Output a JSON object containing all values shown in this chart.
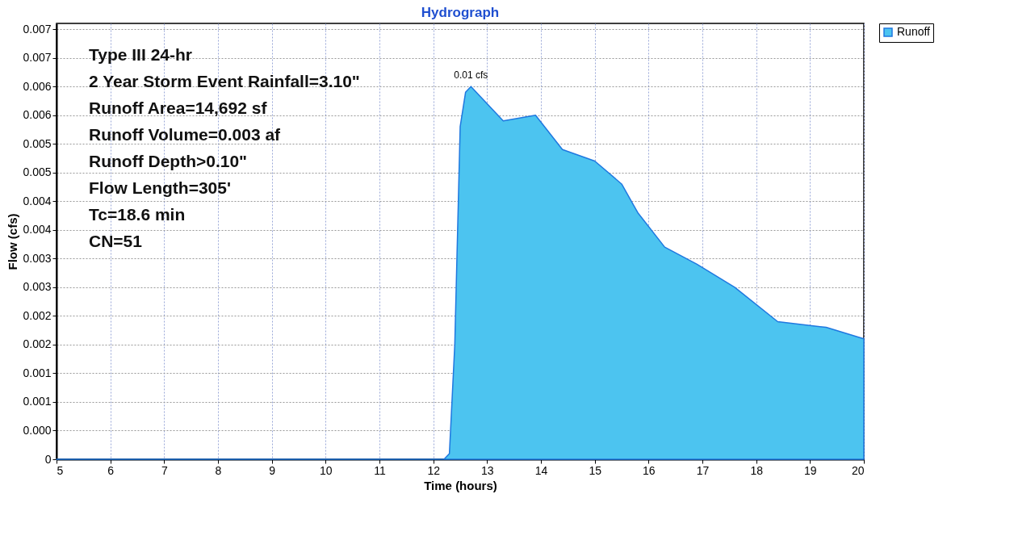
{
  "chart_data": {
    "type": "area",
    "title": "Hydrograph",
    "xlabel": "Time  (hours)",
    "ylabel": "Flow  (cfs)",
    "x": [
      5,
      12.2,
      12.3,
      12.4,
      12.5,
      12.6,
      12.7,
      13.0,
      13.3,
      13.9,
      14.4,
      15.0,
      15.5,
      15.8,
      16.3,
      16.9,
      17.6,
      18.4,
      19.3,
      20.0
    ],
    "series": [
      {
        "name": "Runoff",
        "color": "#4cc4f0",
        "values": [
          0,
          0,
          0.0001,
          0.002,
          0.0058,
          0.0064,
          0.0065,
          0.0062,
          0.0059,
          0.006,
          0.0054,
          0.0052,
          0.0048,
          0.0043,
          0.0037,
          0.0034,
          0.003,
          0.0024,
          0.0023,
          0.0021
        ]
      }
    ],
    "xlim": [
      5,
      20
    ],
    "xticks": [
      5,
      6,
      7,
      8,
      9,
      10,
      11,
      12,
      13,
      14,
      15,
      16,
      17,
      18,
      19,
      20
    ],
    "ylim": [
      0,
      0.0076
    ],
    "yticks": [
      0,
      {
        "value": 0.0005,
        "label": "0.000"
      },
      {
        "value": 0.001,
        "label": "0.001"
      },
      {
        "value": 0.0015,
        "label": "0.001"
      },
      {
        "value": 0.002,
        "label": "0.002"
      },
      {
        "value": 0.0025,
        "label": "0.002"
      },
      {
        "value": 0.003,
        "label": "0.003"
      },
      {
        "value": 0.0035,
        "label": "0.003"
      },
      {
        "value": 0.004,
        "label": "0.004"
      },
      {
        "value": 0.0045,
        "label": "0.004"
      },
      {
        "value": 0.005,
        "label": "0.005"
      },
      {
        "value": 0.0055,
        "label": "0.005"
      },
      {
        "value": 0.006,
        "label": "0.006"
      },
      {
        "value": 0.0065,
        "label": "0.006"
      },
      {
        "value": 0.007,
        "label": "0.007"
      },
      {
        "value": 0.0075,
        "label": "0.007"
      }
    ],
    "annotations": [
      {
        "text": "0.01 cfs",
        "x": 12.7,
        "y": 0.0065
      },
      "Type III 24-hr",
      "2 Year Storm Event Rainfall=3.10\"",
      "Runoff Area=14,692 sf",
      "Runoff Volume=0.003 af",
      "Runoff Depth>0.10\"",
      "Flow Length=305'",
      "Tc=18.6 min",
      "CN=51"
    ],
    "grid": true,
    "legend": "top right"
  }
}
